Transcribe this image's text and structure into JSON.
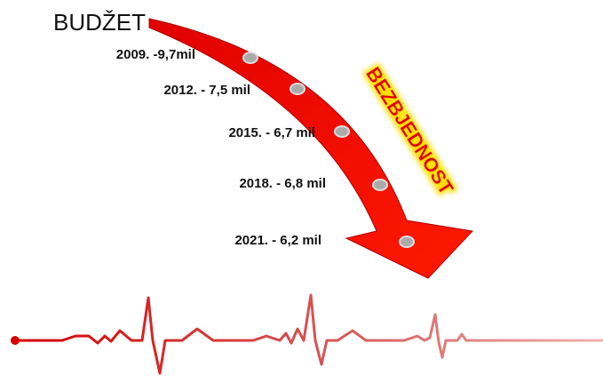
{
  "title": "BUDŽET",
  "arrow_label": "BEZBJEDNOST",
  "items": [
    {
      "label": "2009. -9,7mil"
    },
    {
      "label": "2012. - 7,5 mil"
    },
    {
      "label": "2015. - 6,7 mil"
    },
    {
      "label": "2018. - 6,8 mil"
    },
    {
      "label": "2021. - 6,2 mil"
    }
  ]
}
